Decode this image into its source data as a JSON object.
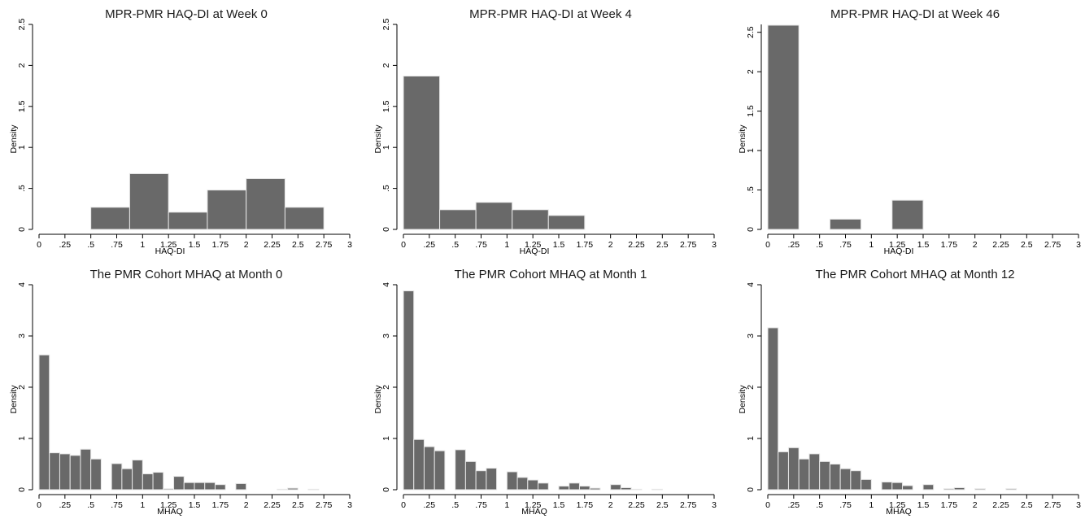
{
  "chart_data": [
    {
      "type": "bar",
      "title": "MPR-PMR HAQ-DI at Week 0",
      "xlabel": "HAQ-DI",
      "ylabel": "Density",
      "xlim": [
        0,
        3
      ],
      "ylim": [
        0,
        2.5
      ],
      "xticks": [
        "0",
        ".25",
        ".5",
        ".75",
        "1",
        "1.25",
        "1.5",
        "1.75",
        "2",
        "2.25",
        "2.5",
        "2.75",
        "3"
      ],
      "yticks": [
        "0",
        ".5",
        "1",
        "1.5",
        "2",
        "2.5"
      ],
      "bin_width": 0.375,
      "bins": [
        [
          0.5,
          0.27
        ],
        [
          0.875,
          0.68
        ],
        [
          1.25,
          0.21
        ],
        [
          1.625,
          0.48
        ],
        [
          2.0,
          0.62
        ],
        [
          2.375,
          0.27
        ]
      ]
    },
    {
      "type": "bar",
      "title": "MPR-PMR HAQ-DI at Week 4",
      "xlabel": "HAQ-DI",
      "ylabel": "Density",
      "xlim": [
        0,
        3
      ],
      "ylim": [
        0,
        2.5
      ],
      "xticks": [
        "0",
        ".25",
        ".5",
        ".75",
        "1",
        "1.25",
        "1.5",
        "1.75",
        "2",
        "2.25",
        "2.5",
        "2.75",
        "3"
      ],
      "yticks": [
        "0",
        ".5",
        "1",
        "1.5",
        "2",
        "2.5"
      ],
      "bin_width": 0.35,
      "bins": [
        [
          0.0,
          1.87
        ],
        [
          0.35,
          0.24
        ],
        [
          0.7,
          0.33
        ],
        [
          1.05,
          0.24
        ],
        [
          1.4,
          0.17
        ]
      ]
    },
    {
      "type": "bar",
      "title": "MPR-PMR HAQ-DI at Week 46",
      "xlabel": "HAQ-DI",
      "ylabel": "Density",
      "xlim": [
        0,
        3
      ],
      "ylim": [
        0,
        2.6
      ],
      "xticks": [
        "0",
        ".25",
        ".5",
        ".75",
        "1",
        "1.25",
        "1.5",
        "1.75",
        "2",
        "2.25",
        "2.5",
        "2.75",
        "3"
      ],
      "yticks": [
        "0",
        ".5",
        "1",
        "1.5",
        "2",
        "2.5"
      ],
      "bin_width": 0.3,
      "bins": [
        [
          0.0,
          2.59
        ],
        [
          0.6,
          0.13
        ],
        [
          1.2,
          0.37
        ]
      ]
    },
    {
      "type": "bar",
      "title": "The PMR Cohort MHAQ at Month 0",
      "xlabel": "MHAQ",
      "ylabel": "Density",
      "xlim": [
        0,
        3
      ],
      "ylim": [
        0,
        4
      ],
      "xticks": [
        "0",
        ".25",
        ".5",
        ".75",
        "1",
        "1.25",
        "1.5",
        "1.75",
        "2",
        "2.25",
        "2.5",
        "2.75",
        "3"
      ],
      "yticks": [
        "0",
        "1",
        "2",
        "3",
        "4"
      ],
      "bin_width": 0.1,
      "bins": [
        [
          0.0,
          2.63
        ],
        [
          0.1,
          0.72
        ],
        [
          0.2,
          0.7
        ],
        [
          0.3,
          0.67
        ],
        [
          0.4,
          0.79
        ],
        [
          0.5,
          0.6
        ],
        [
          0.6,
          0.0
        ],
        [
          0.7,
          0.51
        ],
        [
          0.8,
          0.41
        ],
        [
          0.9,
          0.58
        ],
        [
          1.0,
          0.31
        ],
        [
          1.1,
          0.34
        ],
        [
          1.2,
          0.02
        ],
        [
          1.3,
          0.26
        ],
        [
          1.4,
          0.14
        ],
        [
          1.5,
          0.14
        ],
        [
          1.6,
          0.14
        ],
        [
          1.7,
          0.1
        ],
        [
          1.8,
          0.0
        ],
        [
          1.9,
          0.12
        ],
        [
          2.0,
          0.0
        ],
        [
          2.1,
          0.0
        ],
        [
          2.2,
          0.0
        ],
        [
          2.3,
          0.01
        ],
        [
          2.4,
          0.03
        ],
        [
          2.5,
          0.0
        ],
        [
          2.6,
          0.01
        ]
      ]
    },
    {
      "type": "bar",
      "title": "The PMR Cohort MHAQ at Month 1",
      "xlabel": "MHAQ",
      "ylabel": "Density",
      "xlim": [
        0,
        3
      ],
      "ylim": [
        0,
        4
      ],
      "xticks": [
        "0",
        ".25",
        ".5",
        ".75",
        "1",
        "1.25",
        "1.5",
        "1.75",
        "2",
        "2.25",
        "2.5",
        "2.75",
        "3"
      ],
      "yticks": [
        "0",
        "1",
        "2",
        "3",
        "4"
      ],
      "bin_width": 0.1,
      "bins": [
        [
          0.0,
          3.88
        ],
        [
          0.1,
          0.98
        ],
        [
          0.2,
          0.84
        ],
        [
          0.3,
          0.76
        ],
        [
          0.4,
          0.0
        ],
        [
          0.5,
          0.78
        ],
        [
          0.6,
          0.55
        ],
        [
          0.7,
          0.37
        ],
        [
          0.8,
          0.42
        ],
        [
          0.9,
          0.0
        ],
        [
          1.0,
          0.35
        ],
        [
          1.1,
          0.24
        ],
        [
          1.2,
          0.19
        ],
        [
          1.3,
          0.13
        ],
        [
          1.4,
          0.0
        ],
        [
          1.5,
          0.07
        ],
        [
          1.6,
          0.13
        ],
        [
          1.7,
          0.07
        ],
        [
          1.8,
          0.03
        ],
        [
          1.9,
          0.0
        ],
        [
          2.0,
          0.1
        ],
        [
          2.1,
          0.04
        ],
        [
          2.2,
          0.01
        ],
        [
          2.3,
          0.0
        ],
        [
          2.4,
          0.01
        ]
      ]
    },
    {
      "type": "bar",
      "title": "The PMR Cohort MHAQ at Month 12",
      "xlabel": "MHAQ",
      "ylabel": "Density",
      "xlim": [
        0,
        3
      ],
      "ylim": [
        0,
        4
      ],
      "xticks": [
        "0",
        ".25",
        ".5",
        ".75",
        "1",
        "1.25",
        "1.5",
        "1.75",
        "2",
        "2.25",
        "2.5",
        "2.75",
        "3"
      ],
      "yticks": [
        "0",
        "1",
        "2",
        "3",
        "4"
      ],
      "bin_width": 0.1,
      "bins": [
        [
          0.0,
          3.16
        ],
        [
          0.1,
          0.74
        ],
        [
          0.2,
          0.82
        ],
        [
          0.3,
          0.6
        ],
        [
          0.4,
          0.7
        ],
        [
          0.5,
          0.55
        ],
        [
          0.6,
          0.5
        ],
        [
          0.7,
          0.41
        ],
        [
          0.8,
          0.37
        ],
        [
          0.9,
          0.2
        ],
        [
          1.0,
          0.0
        ],
        [
          1.1,
          0.15
        ],
        [
          1.2,
          0.14
        ],
        [
          1.3,
          0.08
        ],
        [
          1.4,
          0.0
        ],
        [
          1.5,
          0.1
        ],
        [
          1.6,
          0.0
        ],
        [
          1.7,
          0.02
        ],
        [
          1.8,
          0.04
        ],
        [
          1.9,
          0.0
        ],
        [
          2.0,
          0.02
        ],
        [
          2.1,
          0.0
        ],
        [
          2.2,
          0.0
        ],
        [
          2.3,
          0.02
        ]
      ]
    }
  ]
}
